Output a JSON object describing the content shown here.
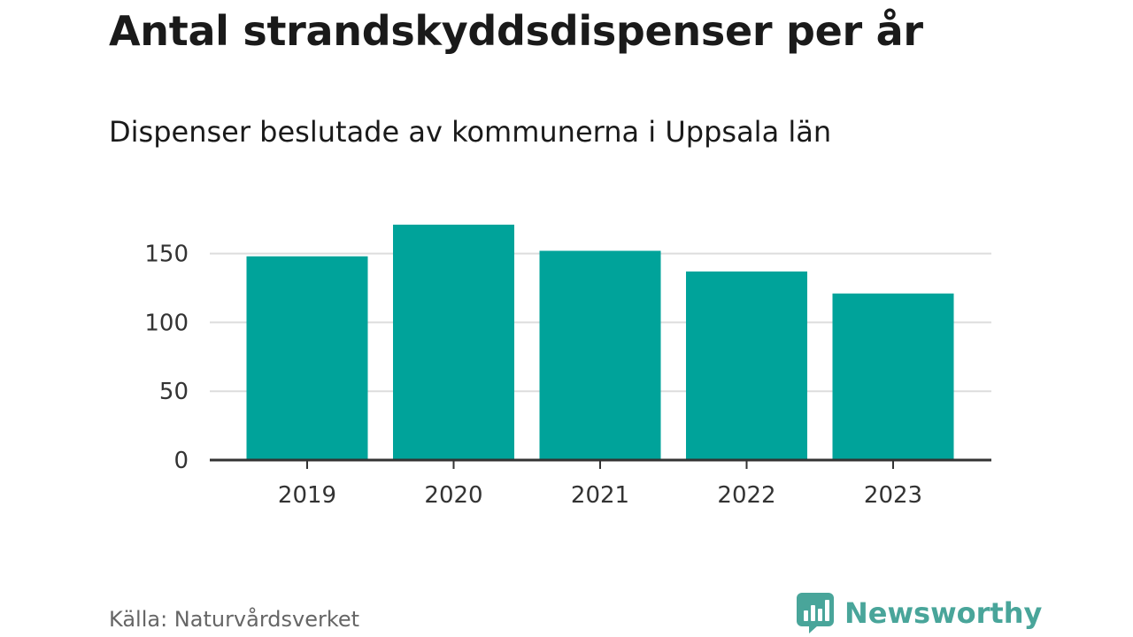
{
  "chart_data": {
    "type": "bar",
    "title": "Antal strandskyddsdispenser per år",
    "subtitle": "Dispenser beslutade av kommunerna i Uppsala län",
    "categories": [
      "2019",
      "2020",
      "2021",
      "2022",
      "2023"
    ],
    "values": [
      148,
      171,
      152,
      137,
      121
    ],
    "yticks": [
      0,
      50,
      100,
      150
    ],
    "ylim": [
      0,
      180
    ],
    "xlabel": "",
    "ylabel": "",
    "grid": true,
    "bar_color": "#00a39a",
    "grid_color": "#dddddd",
    "axis_color": "#333333"
  },
  "footer": {
    "source": "Källa: Naturvårdsverket",
    "brand": "Newsworthy",
    "brand_color": "#49a59a"
  }
}
